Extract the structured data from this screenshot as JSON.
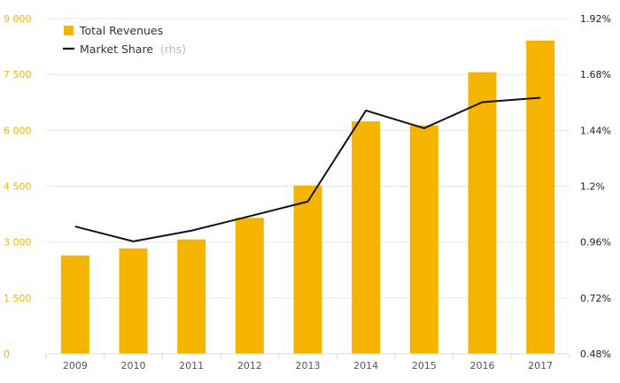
{
  "chart_data": {
    "type": "bar",
    "categories": [
      "2009",
      "2010",
      "2011",
      "2012",
      "2013",
      "2014",
      "2015",
      "2016",
      "2017"
    ],
    "series": [
      {
        "name": "Total Revenues",
        "type": "bar",
        "axis": "left",
        "values": [
          2640,
          2830,
          3070,
          3650,
          4520,
          6240,
          6130,
          7560,
          8410
        ]
      },
      {
        "name": "Market Share",
        "note": "(rhs)",
        "type": "line",
        "axis": "right",
        "values": [
          1.027,
          0.963,
          1.009,
          1.071,
          1.134,
          1.525,
          1.449,
          1.561,
          1.58
        ]
      }
    ],
    "y_left": {
      "range": [
        0,
        9000
      ],
      "ticks": [
        0,
        1500,
        3000,
        4500,
        6000,
        7500,
        9000
      ],
      "tick_labels": [
        "0",
        "1 500",
        "3 000",
        "4 500",
        "6 000",
        "7 500",
        "9 000"
      ]
    },
    "y_right": {
      "range": [
        0.48,
        1.92
      ],
      "ticks": [
        0.48,
        0.72,
        0.96,
        1.2,
        1.44,
        1.68,
        1.92
      ],
      "tick_labels": [
        "0.48%",
        "0.72%",
        "0.96%",
        "1.2%",
        "1.44%",
        "1.68%",
        "1.92%"
      ]
    },
    "title": "",
    "xlabel": "",
    "ylabel": "",
    "grid": true,
    "legend": "top-left",
    "colors": {
      "bar": "#f5b400",
      "line": "#111111",
      "grid": "#e6e6e6",
      "left_axis_text": "#f5b400",
      "right_axis_text": "#222222"
    }
  }
}
